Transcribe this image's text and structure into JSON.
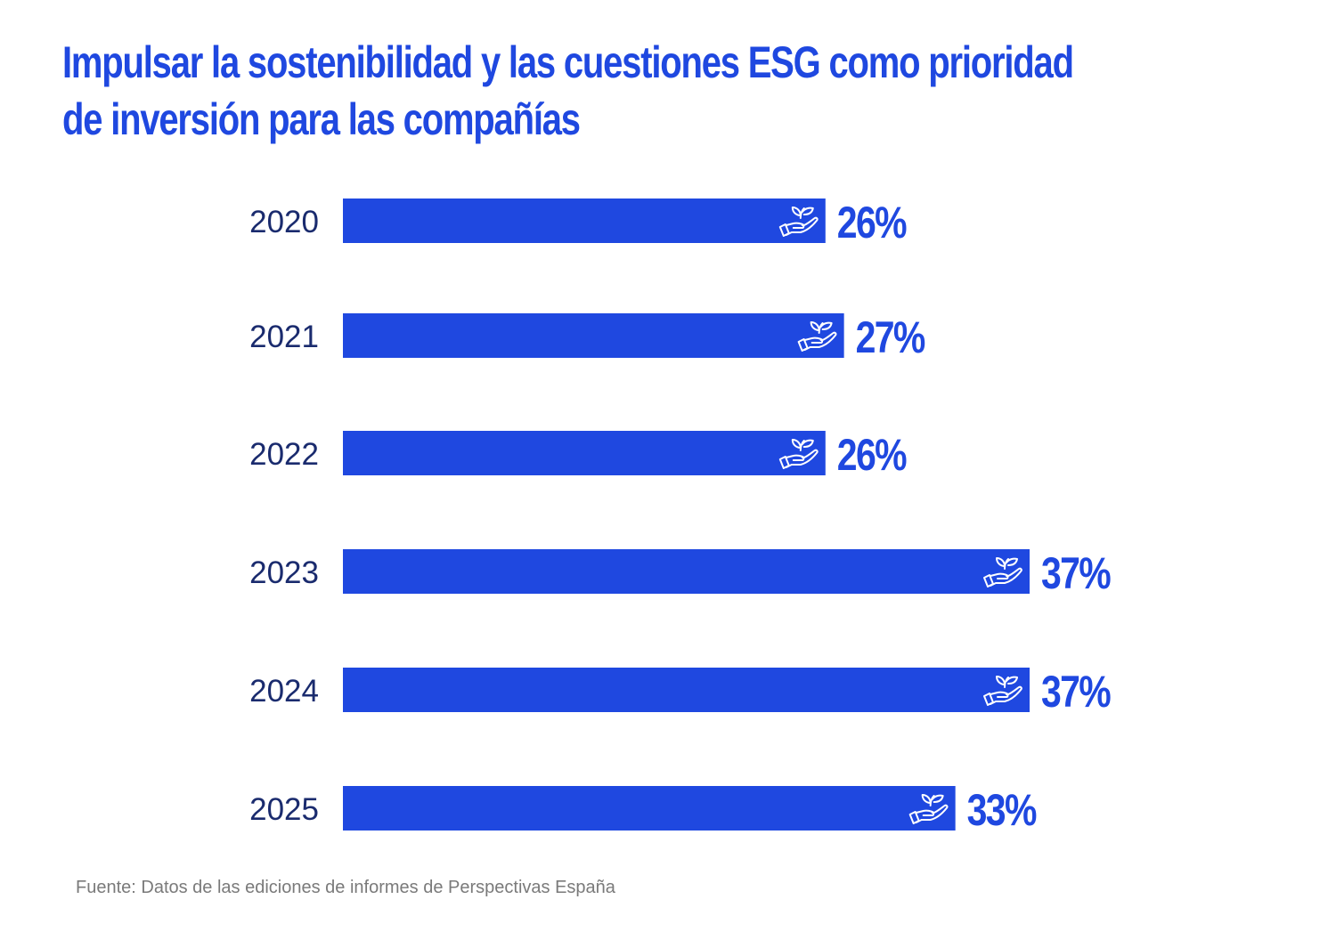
{
  "title_lines": [
    "Impulsar la sostenibilidad y las cuestiones ESG como prioridad",
    "de inversión para las compañías"
  ],
  "source": "Fuente: Datos de las ediciones de informes de Perspectivas España",
  "colors": {
    "accent": "#1f48e0",
    "category_text": "#1a2b6e",
    "source_text": "#7a7a7a",
    "background": "#ffffff"
  },
  "chart_data": {
    "type": "bar",
    "orientation": "horizontal",
    "categories": [
      "2020",
      "2021",
      "2022",
      "2023",
      "2024",
      "2025"
    ],
    "values": [
      26,
      27,
      26,
      37,
      37,
      33
    ],
    "value_labels": [
      "26%",
      "27%",
      "26%",
      "37%",
      "37%",
      "33%"
    ],
    "unit": "%",
    "xlim": [
      0,
      37
    ],
    "bar_icon": "hand-plant-icon",
    "grid": false,
    "legend": "none"
  }
}
